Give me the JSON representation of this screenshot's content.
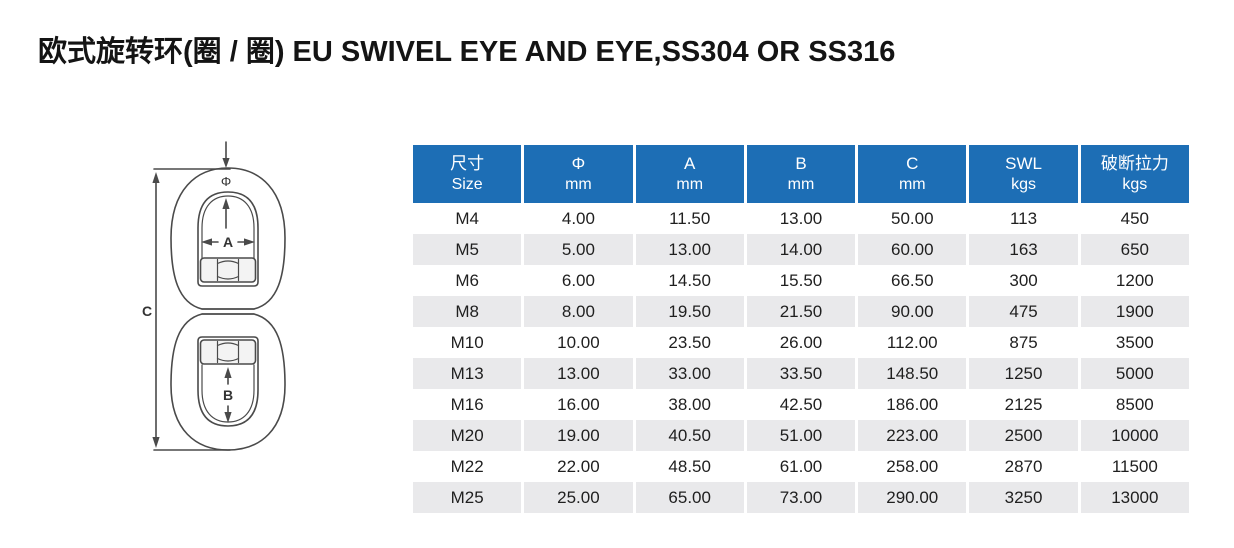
{
  "title": "欧式旋转环(圈 / 圈) EU SWIVEL EYE AND EYE,SS304 OR SS316",
  "diagram": {
    "labels": {
      "phi": "Φ",
      "a": "A",
      "b": "B",
      "c": "C"
    }
  },
  "table": {
    "columns": [
      {
        "line1": "尺寸",
        "line2": "Size"
      },
      {
        "line1": "Φ",
        "line2": "mm"
      },
      {
        "line1": "A",
        "line2": "mm"
      },
      {
        "line1": "B",
        "line2": "mm"
      },
      {
        "line1": "C",
        "line2": "mm"
      },
      {
        "line1": "SWL",
        "line2": "kgs"
      },
      {
        "line1": "破断拉力",
        "line2": "kgs"
      }
    ],
    "rows": [
      [
        "M4",
        "4.00",
        "11.50",
        "13.00",
        "50.00",
        "113",
        "450"
      ],
      [
        "M5",
        "5.00",
        "13.00",
        "14.00",
        "60.00",
        "163",
        "650"
      ],
      [
        "M6",
        "6.00",
        "14.50",
        "15.50",
        "66.50",
        "300",
        "1200"
      ],
      [
        "M8",
        "8.00",
        "19.50",
        "21.50",
        "90.00",
        "475",
        "1900"
      ],
      [
        "M10",
        "10.00",
        "23.50",
        "26.00",
        "112.00",
        "875",
        "3500"
      ],
      [
        "M13",
        "13.00",
        "33.00",
        "33.50",
        "148.50",
        "1250",
        "5000"
      ],
      [
        "M16",
        "16.00",
        "38.00",
        "42.50",
        "186.00",
        "2125",
        "8500"
      ],
      [
        "M20",
        "19.00",
        "40.50",
        "51.00",
        "223.00",
        "2500",
        "10000"
      ],
      [
        "M22",
        "22.00",
        "48.50",
        "61.00",
        "258.00",
        "2870",
        "11500"
      ],
      [
        "M25",
        "25.00",
        "65.00",
        "73.00",
        "290.00",
        "3250",
        "13000"
      ]
    ]
  },
  "colors": {
    "header_bg": "#1d6eb5",
    "header_text": "#ffffff",
    "alt_row_bg": "#e9e9eb",
    "body_text": "#1f1f1f",
    "line": "#4a4a4a"
  }
}
